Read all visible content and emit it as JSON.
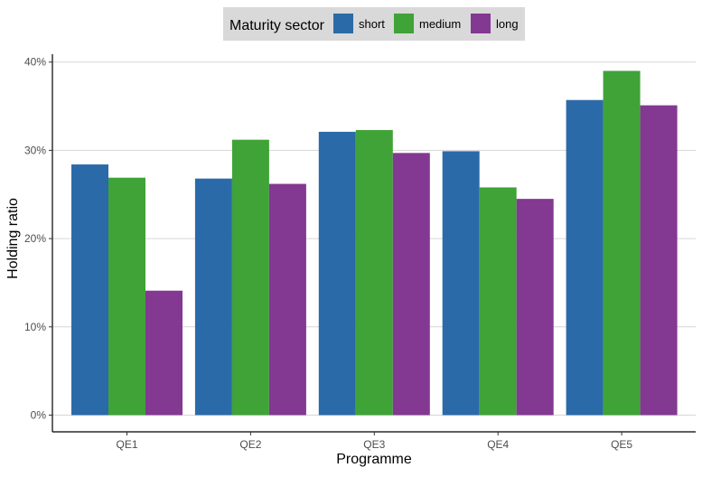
{
  "chart_data": {
    "type": "bar",
    "xlabel": "Programme",
    "ylabel": "Holding ratio",
    "categories": [
      "QE1",
      "QE2",
      "QE3",
      "QE4",
      "QE5"
    ],
    "series": [
      {
        "name": "short",
        "color": "#2b6aa9",
        "values": [
          28.4,
          26.8,
          32.1,
          29.9,
          35.7
        ]
      },
      {
        "name": "medium",
        "color": "#3fa338",
        "values": [
          26.9,
          31.2,
          32.3,
          25.8,
          39.0
        ]
      },
      {
        "name": "long",
        "color": "#833891",
        "values": [
          14.1,
          26.2,
          29.7,
          24.5,
          35.1
        ]
      }
    ],
    "ylim": [
      0,
      41
    ],
    "yticks": [
      0,
      10,
      20,
      30,
      40
    ],
    "ytick_labels": [
      "0%",
      "10%",
      "20%",
      "30%",
      "40%"
    ],
    "grid": "horizontal major",
    "legend": {
      "title": "Maturity sector",
      "position": "top"
    }
  }
}
